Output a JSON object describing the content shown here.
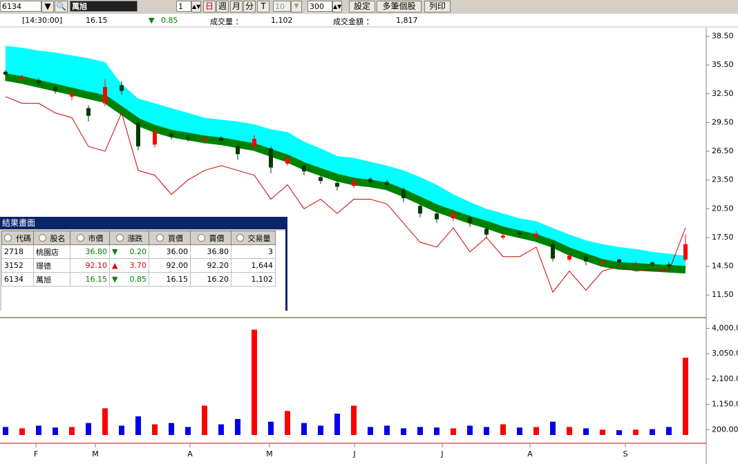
{
  "toolbar": {
    "code": "6134",
    "name": "萬旭",
    "period": "1",
    "buttons": [
      "日",
      "週",
      "月",
      "分",
      "T"
    ],
    "count": "10",
    "bars": "300",
    "actions": [
      "設定",
      "多筆個股",
      "列印"
    ]
  },
  "quote": {
    "time": "[14:30:00]",
    "price": "16.15",
    "arrow": "▼",
    "change": "0.85",
    "volume_label": "成交量 ：",
    "volume": "1,102",
    "amount_label": "成交金額 ：",
    "amount": "1,817"
  },
  "table": {
    "title": "結果畫面",
    "headers": [
      "代碼",
      "股名",
      "市價",
      "漲跌",
      "買價",
      "賣價",
      "交易量"
    ],
    "rows": [
      {
        "code": "2718",
        "name": "桃園店",
        "price": "36.80",
        "arrow": "▼",
        "change": "0.20",
        "bid": "36.00",
        "ask": "36.80",
        "volume": "3"
      },
      {
        "code": "3152",
        "name": "璟德",
        "price": "92.10",
        "arrow": "▲",
        "change": "3.70",
        "bid": "92.00",
        "ask": "92.20",
        "volume": "1,644"
      },
      {
        "code": "6134",
        "name": "萬旭",
        "price": "16.15",
        "arrow": "▼",
        "change": "0.85",
        "bid": "16.15",
        "ask": "16.20",
        "volume": "1,102"
      }
    ]
  },
  "chart_data": {
    "type": "candlestick",
    "month_labels": [
      "F",
      "M",
      "A",
      "M",
      "J",
      "J",
      "A",
      "S"
    ],
    "candles": {
      "open": [
        34.8,
        34.0,
        33.9,
        33.2,
        32.2,
        31.0,
        31.5,
        33.4,
        29.5,
        27.2,
        28.3,
        28.0,
        27.6,
        27.9,
        27.0,
        27.0,
        26.8,
        25.2,
        25.0,
        23.8,
        23.2,
        22.9,
        23.6,
        23.3,
        22.5,
        20.8,
        20.0,
        19.5,
        19.6,
        18.4,
        17.5,
        18.0,
        17.6,
        16.8,
        15.2,
        15.5,
        14.8,
        15.2,
        14.7,
        14.9,
        14.7,
        15.2
      ],
      "high": [
        35.0,
        34.5,
        34.1,
        33.4,
        33.0,
        31.3,
        34.0,
        33.8,
        30.0,
        29.0,
        28.6,
        28.2,
        28.0,
        28.1,
        27.3,
        28.2,
        27.0,
        26.2,
        25.2,
        24.0,
        23.4,
        23.7,
        23.8,
        23.5,
        22.7,
        21.0,
        20.2,
        20.4,
        19.8,
        18.6,
        18.0,
        18.2,
        18.2,
        17.0,
        15.8,
        15.7,
        15.2,
        15.3,
        15.0,
        15.0,
        14.9,
        17.8
      ],
      "low": [
        34.2,
        33.8,
        33.3,
        32.5,
        31.8,
        29.6,
        31.2,
        32.4,
        26.6,
        26.9,
        27.7,
        27.5,
        27.3,
        27.3,
        25.6,
        26.8,
        24.2,
        25.0,
        24.0,
        23.1,
        22.4,
        22.7,
        23.0,
        22.7,
        21.2,
        19.6,
        19.0,
        19.2,
        18.6,
        17.4,
        17.3,
        17.5,
        17.4,
        15.0,
        15.0,
        14.6,
        14.6,
        14.6,
        14.5,
        14.4,
        14.2,
        15.0
      ],
      "close": [
        34.5,
        34.2,
        33.6,
        32.8,
        32.5,
        30.2,
        33.2,
        32.8,
        27.0,
        28.5,
        28.0,
        27.8,
        27.8,
        27.6,
        26.2,
        27.8,
        24.8,
        25.8,
        24.4,
        23.4,
        22.8,
        23.4,
        23.3,
        23.0,
        21.6,
        20.0,
        19.4,
        20.0,
        19.0,
        17.8,
        17.7,
        17.8,
        17.9,
        15.3,
        15.6,
        15.0,
        15.0,
        14.9,
        14.8,
        14.7,
        14.5,
        16.8
      ]
    },
    "cloud_top": [
      37.5,
      37.3,
      37.0,
      36.8,
      36.5,
      36.2,
      35.8,
      33.5,
      32.0,
      31.5,
      31.0,
      30.5,
      30.0,
      29.8,
      29.6,
      29.3,
      28.8,
      28.5,
      27.5,
      26.8,
      26.0,
      25.8,
      25.4,
      25.0,
      24.5,
      23.8,
      23.0,
      22.0,
      21.2,
      20.5,
      20.0,
      19.5,
      19.2,
      18.5,
      17.8,
      17.2,
      16.8,
      16.5,
      16.3,
      16.0,
      15.8,
      15.6
    ],
    "band": [
      34.6,
      34.3,
      33.9,
      33.5,
      33.1,
      32.7,
      32.3,
      31.1,
      29.9,
      29.2,
      28.7,
      28.4,
      28.1,
      27.9,
      27.6,
      27.3,
      26.7,
      26.1,
      25.3,
      24.7,
      24.1,
      23.7,
      23.5,
      23.2,
      22.5,
      21.7,
      20.9,
      20.3,
      19.7,
      19.2,
      18.6,
      18.2,
      17.8,
      17.2,
      16.4,
      15.8,
      15.2,
      14.9,
      14.8,
      14.7,
      14.6,
      14.5
    ],
    "envelope": [
      32.2,
      31.5,
      31.5,
      30.5,
      30.0,
      27.0,
      26.5,
      30.5,
      24.5,
      24.0,
      22.0,
      23.5,
      24.5,
      25.0,
      24.5,
      24.0,
      21.5,
      23.0,
      20.5,
      21.5,
      20.0,
      21.5,
      21.5,
      21.0,
      19.0,
      17.0,
      16.5,
      18.5,
      16.0,
      17.5,
      15.5,
      15.5,
      16.5,
      11.8,
      14.0,
      12.0,
      14.0,
      14.5,
      14.0,
      14.2,
      14.0,
      18.5
    ],
    "volume": [
      300,
      250,
      350,
      280,
      300,
      450,
      1000,
      350,
      700,
      400,
      450,
      300,
      1100,
      400,
      600,
      3950,
      500,
      900,
      450,
      350,
      800,
      1100,
      300,
      350,
      250,
      300,
      280,
      250,
      350,
      300,
      400,
      280,
      300,
      500,
      300,
      250,
      200,
      180,
      200,
      220,
      300,
      2900
    ],
    "ylim": [
      9.5,
      39.4
    ],
    "yticks": [
      {
        "value": 38.5,
        "label": "38.50"
      },
      {
        "value": 35.5,
        "label": "35.50"
      },
      {
        "value": 32.5,
        "label": "32.50"
      },
      {
        "value": 29.5,
        "label": "29.50"
      },
      {
        "value": 26.5,
        "label": "26.50"
      },
      {
        "value": 23.5,
        "label": "23.50"
      },
      {
        "value": 20.5,
        "label": "20.50"
      },
      {
        "value": 17.5,
        "label": "17.50"
      },
      {
        "value": 14.5,
        "label": "14.50"
      },
      {
        "value": 11.5,
        "label": "11.50"
      }
    ],
    "y2lim": [
      0,
      4350
    ],
    "y2ticks": [
      {
        "value": 4000,
        "label": "4,000.00"
      },
      {
        "value": 3050,
        "label": "3,050.00"
      },
      {
        "value": 2100,
        "label": "2,100.00"
      },
      {
        "value": 1150,
        "label": "1,150.00"
      },
      {
        "value": 200,
        "label": "200.00"
      }
    ],
    "colors": {
      "up": "#ff0000",
      "down": "#003c00",
      "cloud": "#00ffff",
      "band": "#008000",
      "envelope": "#cc0000",
      "volume_up": "#ff0000",
      "volume_down": "#0000ee"
    }
  }
}
